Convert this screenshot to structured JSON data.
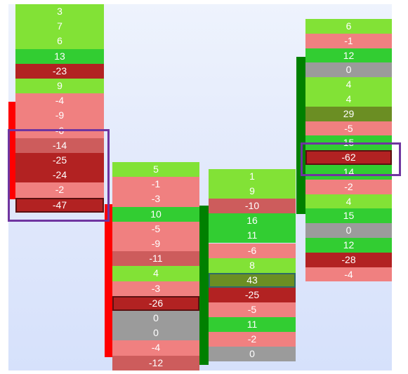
{
  "colors": {
    "bright_green": "#82e236",
    "green": "#32cd32",
    "dark_olive": "#6b8e23",
    "light_red": "#f08080",
    "medium_red": "#cd5c5c",
    "dark_red": "#b22222",
    "gray": "#9b9b9b",
    "bar_red": "#ff0000",
    "bar_green": "#008000",
    "highlight": "#6f35a0"
  },
  "columns": [
    {
      "name": "column-1",
      "cells": [
        {
          "value": "3",
          "color": "bright_green"
        },
        {
          "value": "7",
          "color": "bright_green"
        },
        {
          "value": "6",
          "color": "bright_green"
        },
        {
          "value": "13",
          "color": "green"
        },
        {
          "value": "-23",
          "color": "dark_red"
        },
        {
          "value": "9",
          "color": "bright_green"
        },
        {
          "value": "-4",
          "color": "light_red"
        },
        {
          "value": "-9",
          "color": "light_red"
        },
        {
          "value": "-6",
          "color": "light_red"
        },
        {
          "value": "-14",
          "color": "medium_red"
        },
        {
          "value": "-25",
          "color": "dark_red"
        },
        {
          "value": "-24",
          "color": "dark_red"
        },
        {
          "value": "-2",
          "color": "light_red"
        },
        {
          "value": "-47",
          "color": "dark_red",
          "boxed": true
        }
      ]
    },
    {
      "name": "column-2",
      "cells": [
        {
          "value": "5",
          "color": "bright_green"
        },
        {
          "value": "-1",
          "color": "light_red"
        },
        {
          "value": "-3",
          "color": "light_red"
        },
        {
          "value": "10",
          "color": "green"
        },
        {
          "value": "-5",
          "color": "light_red"
        },
        {
          "value": "-9",
          "color": "light_red"
        },
        {
          "value": "-11",
          "color": "medium_red"
        },
        {
          "value": "4",
          "color": "bright_green"
        },
        {
          "value": "-3",
          "color": "light_red"
        },
        {
          "value": "-26",
          "color": "dark_red",
          "boxed": true
        },
        {
          "value": "0",
          "color": "gray"
        },
        {
          "value": "0",
          "color": "gray"
        },
        {
          "value": "-4",
          "color": "light_red"
        },
        {
          "value": "-12",
          "color": "medium_red"
        }
      ]
    },
    {
      "name": "column-3",
      "cells": [
        {
          "value": "1",
          "color": "bright_green"
        },
        {
          "value": "9",
          "color": "bright_green"
        },
        {
          "value": "-10",
          "color": "medium_red"
        },
        {
          "value": "16",
          "color": "green"
        },
        {
          "value": "11",
          "color": "green"
        },
        {
          "value": "-6",
          "color": "light_red"
        },
        {
          "value": "8",
          "color": "bright_green"
        },
        {
          "value": "43",
          "color": "dark_olive",
          "boxed_green": true
        },
        {
          "value": "-25",
          "color": "dark_red"
        },
        {
          "value": "-5",
          "color": "light_red"
        },
        {
          "value": "11",
          "color": "green"
        },
        {
          "value": "-2",
          "color": "light_red"
        },
        {
          "value": "0",
          "color": "gray"
        }
      ]
    },
    {
      "name": "column-4",
      "cells": [
        {
          "value": "6",
          "color": "bright_green"
        },
        {
          "value": "-1",
          "color": "light_red"
        },
        {
          "value": "12",
          "color": "green"
        },
        {
          "value": "0",
          "color": "gray"
        },
        {
          "value": "4",
          "color": "bright_green"
        },
        {
          "value": "4",
          "color": "bright_green"
        },
        {
          "value": "29",
          "color": "dark_olive"
        },
        {
          "value": "-5",
          "color": "light_red"
        },
        {
          "value": "15",
          "color": "green"
        },
        {
          "value": "-62",
          "color": "dark_red",
          "boxed": true
        },
        {
          "value": "14",
          "color": "green"
        },
        {
          "value": "-2",
          "color": "light_red"
        },
        {
          "value": "4",
          "color": "bright_green"
        },
        {
          "value": "15",
          "color": "green"
        },
        {
          "value": "0",
          "color": "gray"
        },
        {
          "value": "12",
          "color": "green"
        },
        {
          "value": "-28",
          "color": "dark_red"
        },
        {
          "value": "-4",
          "color": "light_red"
        }
      ]
    }
  ]
}
